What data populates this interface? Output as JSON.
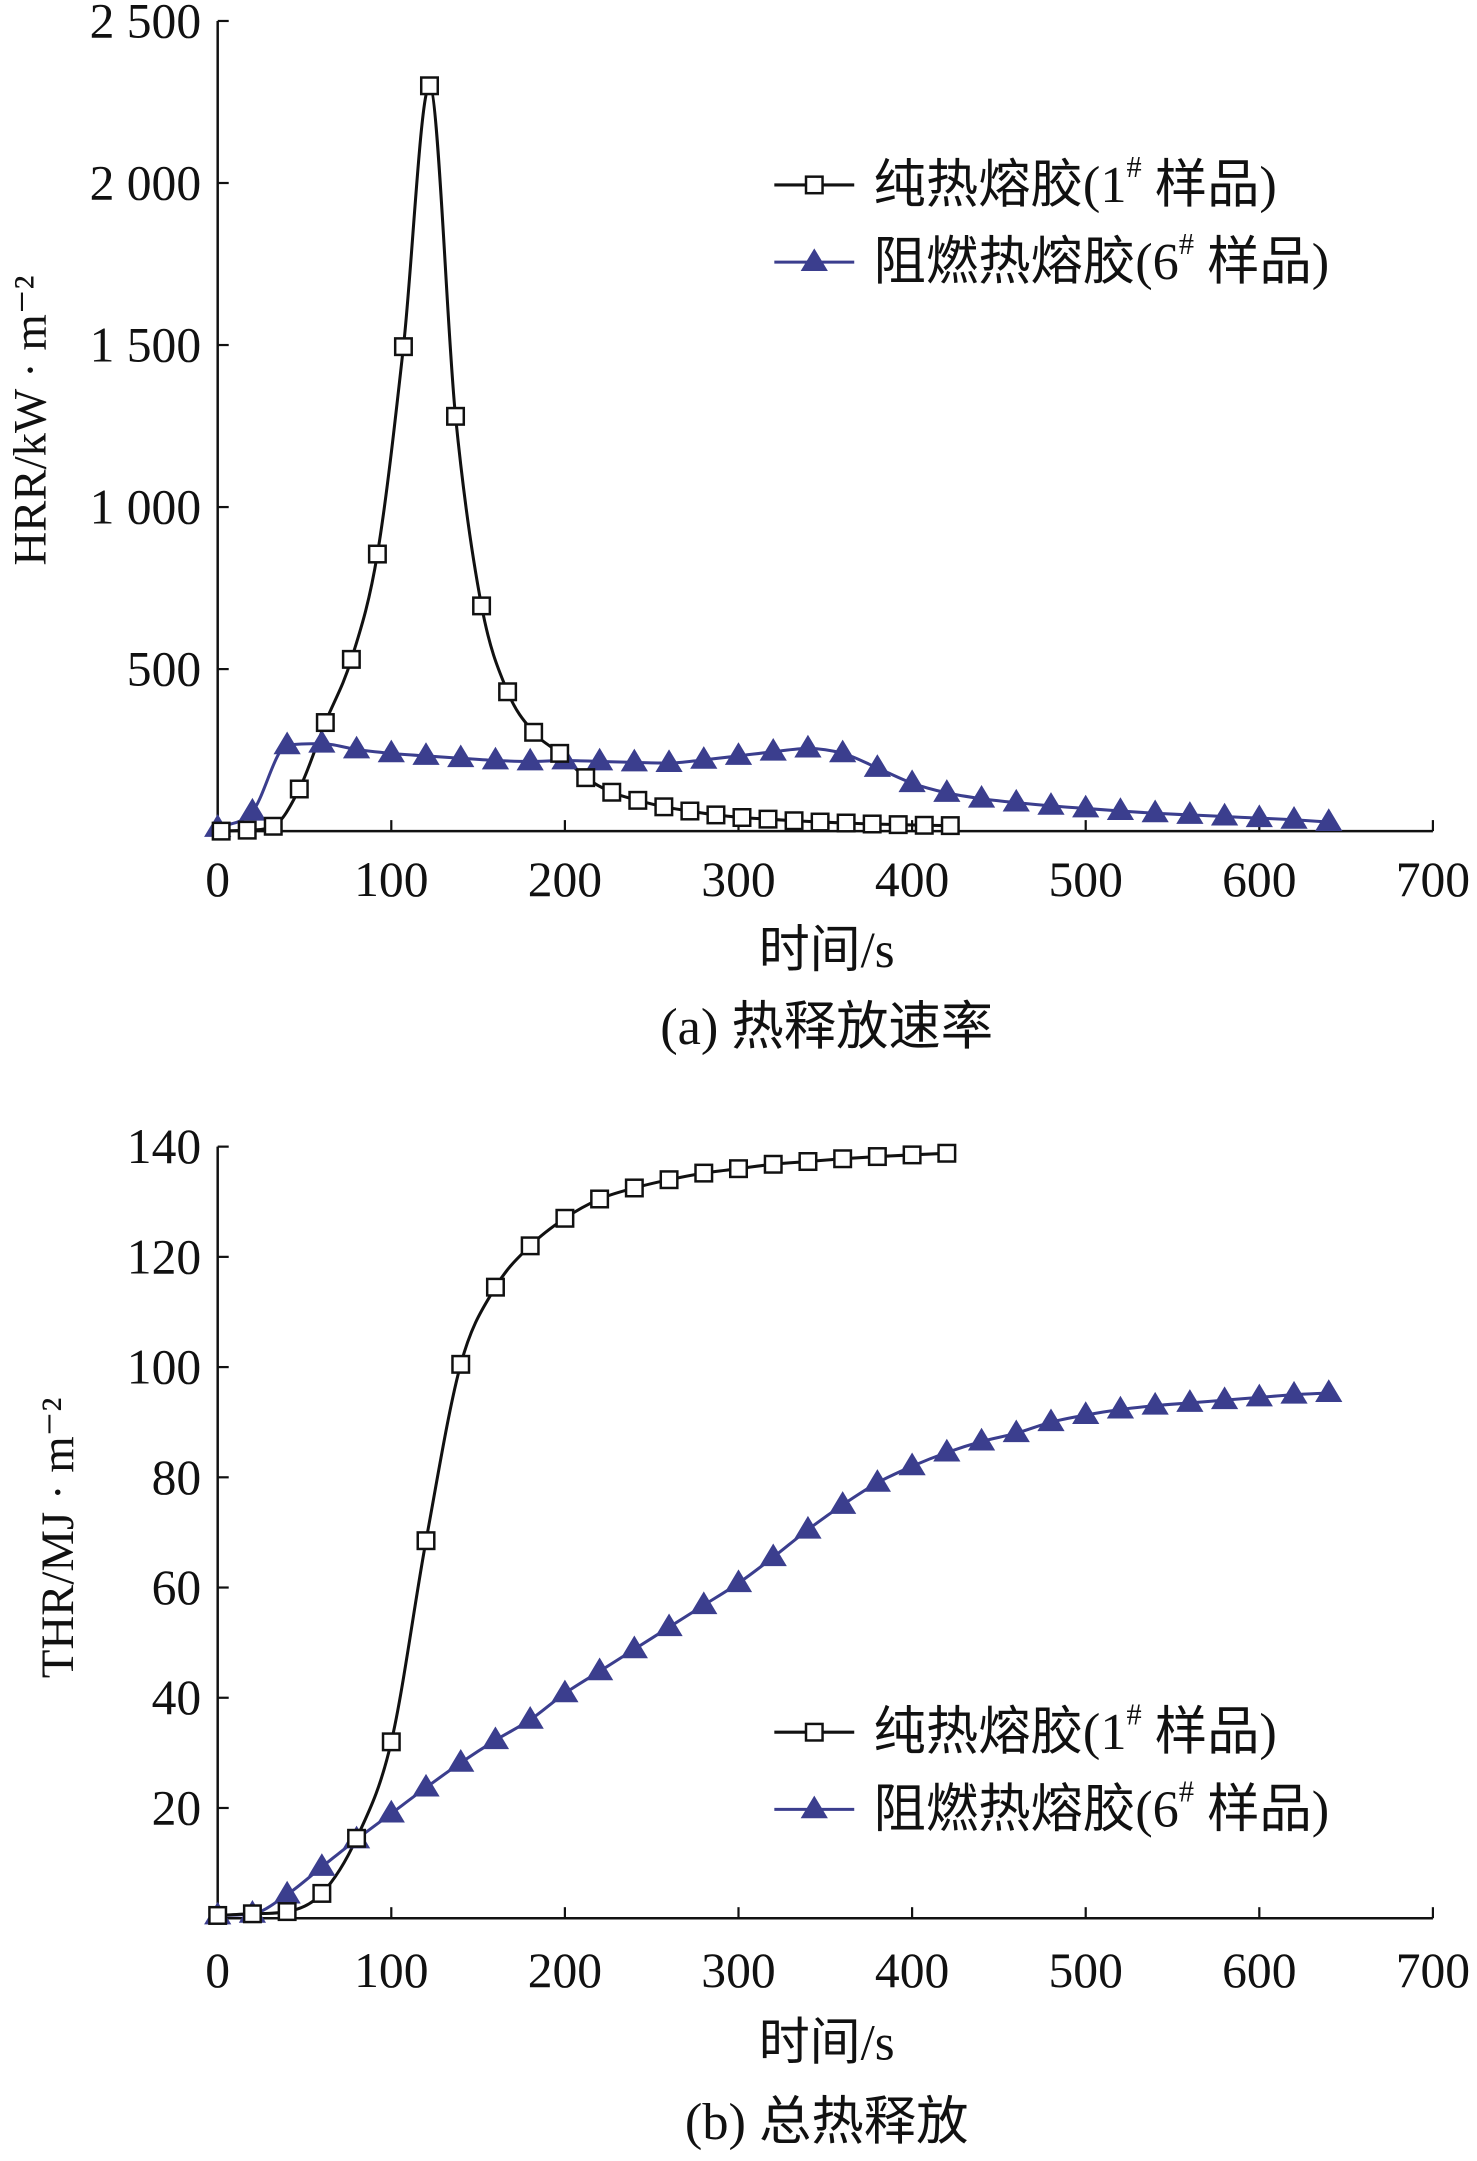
{
  "chart_data": [
    {
      "type": "line",
      "caption": "(a) 热释放速率",
      "xlabel": "时间/s",
      "ylabel": "HRR/kW · m⁻²",
      "xlim": [
        0,
        700
      ],
      "ylim": [
        0,
        2500
      ],
      "x_ticks": [
        {
          "value": 0,
          "label": "0"
        },
        {
          "value": 100,
          "label": "100"
        },
        {
          "value": 200,
          "label": "200"
        },
        {
          "value": 300,
          "label": "300"
        },
        {
          "value": 400,
          "label": "400"
        },
        {
          "value": 500,
          "label": "500"
        },
        {
          "value": 600,
          "label": "600"
        },
        {
          "value": 700,
          "label": "700"
        }
      ],
      "y_ticks": [
        {
          "value": 500,
          "label": "500"
        },
        {
          "value": 1000,
          "label": "1 000"
        },
        {
          "value": 1500,
          "label": "1 500"
        },
        {
          "value": 2000,
          "label": "2 000"
        },
        {
          "value": 2500,
          "label": "2 500"
        }
      ],
      "grid": false,
      "legend_position": "top-right",
      "series": [
        {
          "name": "纯热熔胶(1# 样品)",
          "marker": "square",
          "color": "#111111",
          "x": [
            2,
            17,
            32,
            47,
            62,
            77,
            92,
            107,
            122,
            137,
            152,
            167,
            182,
            197,
            212,
            227,
            242,
            257,
            272,
            287,
            302,
            317,
            332,
            347,
            362,
            377,
            392,
            407,
            422
          ],
          "y": [
            0,
            3,
            15,
            130,
            335,
            530,
            855,
            1495,
            2300,
            1280,
            695,
            430,
            305,
            240,
            165,
            120,
            95,
            75,
            62,
            50,
            42,
            37,
            32,
            28,
            25,
            22,
            20,
            18,
            17
          ]
        },
        {
          "name": "阻燃热熔胶(6# 样品)",
          "marker": "triangle",
          "color": "#3b3e8e",
          "x": [
            0,
            20,
            40,
            60,
            80,
            100,
            120,
            140,
            160,
            180,
            200,
            220,
            240,
            260,
            280,
            300,
            320,
            340,
            360,
            380,
            400,
            420,
            440,
            460,
            480,
            500,
            520,
            540,
            560,
            580,
            600,
            620,
            640
          ],
          "y": [
            10,
            60,
            265,
            270,
            252,
            240,
            232,
            225,
            218,
            215,
            218,
            215,
            212,
            210,
            220,
            232,
            245,
            255,
            240,
            195,
            148,
            118,
            100,
            88,
            78,
            70,
            62,
            55,
            50,
            45,
            40,
            35,
            28
          ]
        }
      ]
    },
    {
      "type": "line",
      "caption": "(b) 总热释放",
      "xlabel": "时间/s",
      "ylabel": "THR/MJ · m⁻²",
      "xlim": [
        0,
        700
      ],
      "ylim": [
        0,
        140
      ],
      "x_ticks": [
        {
          "value": 0,
          "label": "0"
        },
        {
          "value": 100,
          "label": "100"
        },
        {
          "value": 200,
          "label": "200"
        },
        {
          "value": 300,
          "label": "300"
        },
        {
          "value": 400,
          "label": "400"
        },
        {
          "value": 500,
          "label": "500"
        },
        {
          "value": 600,
          "label": "600"
        },
        {
          "value": 700,
          "label": "700"
        }
      ],
      "y_ticks": [
        {
          "value": 20,
          "label": "20"
        },
        {
          "value": 40,
          "label": "40"
        },
        {
          "value": 60,
          "label": "60"
        },
        {
          "value": 80,
          "label": "80"
        },
        {
          "value": 100,
          "label": "100"
        },
        {
          "value": 120,
          "label": "120"
        },
        {
          "value": 140,
          "label": "140"
        }
      ],
      "grid": false,
      "legend_position": "lower-right",
      "series": [
        {
          "name": "纯热熔胶(1# 样品)",
          "marker": "square",
          "color": "#111111",
          "x": [
            0,
            20,
            40,
            60,
            80,
            100,
            120,
            140,
            160,
            180,
            200,
            220,
            240,
            260,
            280,
            300,
            320,
            340,
            360,
            380,
            400,
            420
          ],
          "y": [
            0.5,
            0.8,
            1.2,
            4.5,
            14.5,
            32,
            68.5,
            100.5,
            114.5,
            122,
            127,
            130.5,
            132.5,
            134,
            135.2,
            136,
            136.8,
            137.3,
            137.8,
            138.2,
            138.5,
            138.8
          ]
        },
        {
          "name": "阻燃热熔胶(6# 样品)",
          "marker": "triangle",
          "color": "#3b3e8e",
          "x": [
            0,
            20,
            40,
            60,
            80,
            100,
            120,
            140,
            160,
            180,
            200,
            220,
            240,
            260,
            280,
            300,
            320,
            340,
            360,
            380,
            400,
            420,
            440,
            460,
            480,
            500,
            520,
            540,
            560,
            580,
            600,
            620,
            640
          ],
          "y": [
            0.5,
            0.8,
            4.3,
            9.3,
            14.3,
            19,
            23.7,
            28.2,
            32.3,
            36,
            40.8,
            44.8,
            48.8,
            52.8,
            56.8,
            60.8,
            65.5,
            70.5,
            75,
            79,
            82,
            84.5,
            86.5,
            88,
            90,
            91.3,
            92.3,
            93,
            93.5,
            94,
            94.5,
            95,
            95.3
          ]
        }
      ]
    }
  ]
}
